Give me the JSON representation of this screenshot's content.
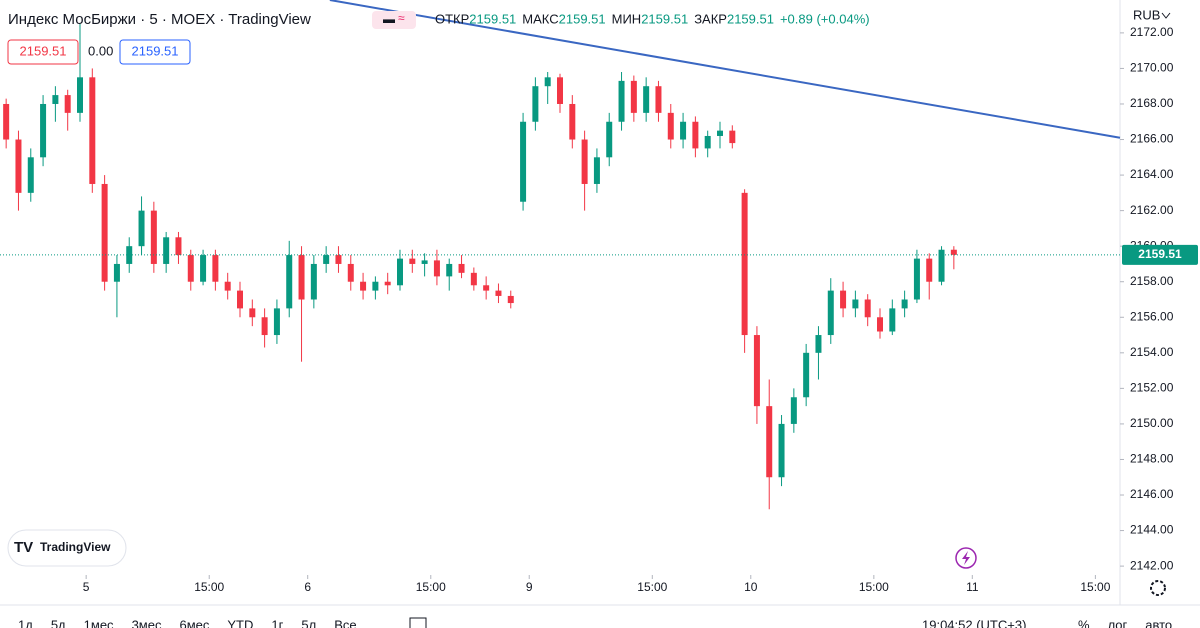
{
  "header": {
    "title": "Индекс МосБиржи · 5 · MOEX · TradingView",
    "ohlc": [
      {
        "label": "ОТКР",
        "value": "2159.51"
      },
      {
        "label": "МАКС",
        "value": "2159.51"
      },
      {
        "label": "МИН",
        "value": "2159.51"
      },
      {
        "label": "ЗАКР",
        "value": "2159.51"
      }
    ],
    "change": "+0.89 (+0.04%)",
    "badges": [
      "2159.51",
      "0.00",
      "2159.51"
    ],
    "logo": "TradingView"
  },
  "chart_data": {
    "type": "candlestick",
    "x": [
      0.5,
      1.5,
      2.5,
      3.5,
      4.5,
      5.5,
      6.5,
      7.5,
      8.5,
      9.5,
      10.5,
      11.5,
      12.5,
      13.5,
      14.5,
      15.5,
      16.5,
      17.5,
      18.5,
      19.5,
      20.5,
      21.5,
      22.5,
      23.5,
      24.5,
      25.5,
      26.5,
      27.5,
      28.5,
      29.5,
      30.5,
      31.5,
      32.5,
      33.5,
      34.5,
      35.5,
      36.5,
      37.5,
      38.5,
      39.5,
      40.5,
      41.5,
      42.5,
      43.5,
      44.5,
      45.5,
      46.5,
      47.5,
      48.5,
      49.5,
      50.5,
      51.5,
      52.5,
      53.5,
      54.5,
      55.5,
      56.5,
      57.5,
      58.5,
      59.5,
      60.5,
      61.5,
      62.5,
      63.5,
      64.5,
      65.5,
      66.5,
      67.5,
      68.5,
      69.5,
      70.5,
      71.5,
      72.5,
      73.5,
      74.5,
      75.5,
      76.5,
      77.5
    ],
    "open": [
      2168,
      2166,
      2163,
      2165,
      2168,
      2168.5,
      2167.5,
      2169.5,
      2163.5,
      2158,
      2159,
      2160,
      2162,
      2159,
      2160.5,
      2159.5,
      2158,
      2159.5,
      2158,
      2157.5,
      2156.5,
      2156,
      2155,
      2156.5,
      2159.5,
      2157,
      2159,
      2159.5,
      2159,
      2158,
      2157.5,
      2158,
      2157.8,
      2159.3,
      2159,
      2159.2,
      2158.3,
      2159,
      2158.5,
      2157.8,
      2157.5,
      2157.2,
      2162.5,
      2167,
      2169,
      2169.5,
      2168,
      2166,
      2163.5,
      2165,
      2167,
      2169.3,
      2167.5,
      2169,
      2167.5,
      2166,
      2167,
      2165.5,
      2166.2,
      2166.5,
      2163,
      2155,
      2151,
      2147,
      2150,
      2151.5,
      2154,
      2155,
      2157.5,
      2156.5,
      2157,
      2156,
      2155.2,
      2156.5,
      2157,
      2159.3,
      2158,
      2159.8
    ],
    "high": [
      2168.3,
      2166.5,
      2165.5,
      2168.5,
      2169,
      2168.8,
      2172.5,
      2170,
      2164,
      2159.5,
      2160.5,
      2162.8,
      2162.5,
      2160.8,
      2160.8,
      2159.8,
      2159.8,
      2159.8,
      2158.5,
      2158,
      2157,
      2156.5,
      2157,
      2160.3,
      2160,
      2159.5,
      2160,
      2160,
      2159.5,
      2158.5,
      2158.3,
      2158.5,
      2159.8,
      2159.8,
      2159.6,
      2159.8,
      2159.3,
      2159.5,
      2158.8,
      2158.3,
      2157.9,
      2157.5,
      2167.5,
      2169.5,
      2169.8,
      2169.7,
      2168.5,
      2166.5,
      2165.5,
      2167.5,
      2169.8,
      2169.6,
      2169.5,
      2169.3,
      2168,
      2167.5,
      2167.3,
      2166.5,
      2167,
      2166.8,
      2163.2,
      2155.5,
      2152.5,
      2150.5,
      2152,
      2154.5,
      2155.5,
      2158.2,
      2158,
      2157.5,
      2157.3,
      2156.5,
      2157,
      2157.5,
      2159.8,
      2159.6,
      2160,
      2160
    ],
    "low": [
      2165.5,
      2162,
      2162.5,
      2164.5,
      2167,
      2166.5,
      2167,
      2163,
      2157.5,
      2156,
      2158.5,
      2159.5,
      2158.5,
      2158.5,
      2159,
      2157.5,
      2157.8,
      2157.5,
      2157,
      2156,
      2155.5,
      2154.3,
      2154.5,
      2156,
      2153.5,
      2156.5,
      2158.5,
      2158.5,
      2157.5,
      2157,
      2157,
      2157.3,
      2157.5,
      2158.5,
      2158.3,
      2157.8,
      2157.5,
      2158.2,
      2157.5,
      2157,
      2156.8,
      2156.5,
      2162,
      2166.5,
      2168,
      2167.5,
      2165.5,
      2162,
      2163,
      2164.5,
      2166.5,
      2167,
      2167,
      2167,
      2165.5,
      2165.5,
      2165,
      2165,
      2165.5,
      2165.5,
      2154,
      2150,
      2145.2,
      2146.5,
      2149.5,
      2151,
      2152.5,
      2154.5,
      2156,
      2156,
      2155.5,
      2154.8,
      2155,
      2156,
      2156.8,
      2157,
      2157.8,
      2158.7
    ],
    "close": [
      2166,
      2163,
      2165,
      2168,
      2168.5,
      2167.5,
      2169.5,
      2163.5,
      2158,
      2159,
      2160,
      2162,
      2159,
      2160.5,
      2159.5,
      2158,
      2159.5,
      2158,
      2157.5,
      2156.5,
      2156,
      2155,
      2156.5,
      2159.5,
      2157,
      2159,
      2159.5,
      2159,
      2158,
      2157.5,
      2158,
      2157.8,
      2159.3,
      2159,
      2159.2,
      2158.3,
      2159,
      2158.5,
      2157.8,
      2157.5,
      2157.2,
      2156.8,
      2167,
      2169,
      2169.5,
      2168,
      2166,
      2163.5,
      2165,
      2167,
      2169.3,
      2167.5,
      2169,
      2167.5,
      2166,
      2167,
      2165.5,
      2166.2,
      2166.5,
      2165.8,
      2155,
      2151,
      2147,
      2150,
      2151.5,
      2154,
      2155,
      2157.5,
      2156.5,
      2157,
      2156,
      2155.2,
      2156.5,
      2157,
      2159.3,
      2158,
      2159.8,
      2159.51
    ],
    "colors": {
      "up": "#089981",
      "down": "#f23645"
    },
    "xlim": [
      0,
      91
    ],
    "xticks": [
      {
        "value": 7,
        "label": "5"
      },
      {
        "value": 17,
        "label": "15:00"
      },
      {
        "value": 25,
        "label": "6"
      },
      {
        "value": 35,
        "label": "15:00"
      },
      {
        "value": 43,
        "label": "9"
      },
      {
        "value": 53,
        "label": "15:00"
      },
      {
        "value": 61,
        "label": "10"
      },
      {
        "value": 71,
        "label": "15:00"
      },
      {
        "value": 79,
        "label": "11"
      },
      {
        "value": 89,
        "label": "15:00"
      }
    ],
    "ylim": [
      2141.5,
      2173.85
    ],
    "yticks": [
      {
        "value": 2142,
        "label": "2142.00"
      },
      {
        "value": 2144,
        "label": "2144.00"
      },
      {
        "value": 2146,
        "label": "2146.00"
      },
      {
        "value": 2148,
        "label": "2148.00"
      },
      {
        "value": 2150,
        "label": "2150.00"
      },
      {
        "value": 2152,
        "label": "2152.00"
      },
      {
        "value": 2154,
        "label": "2154.00"
      },
      {
        "value": 2156,
        "label": "2156.00"
      },
      {
        "value": 2158,
        "label": "2158.00"
      },
      {
        "value": 2160,
        "label": "2160.00"
      },
      {
        "value": 2162,
        "label": "2162.00"
      },
      {
        "value": 2164,
        "label": "2164.00"
      },
      {
        "value": 2166,
        "label": "2166.00"
      },
      {
        "value": 2168,
        "label": "2168.00"
      },
      {
        "value": 2170,
        "label": "2170.00"
      },
      {
        "value": 2172,
        "label": "2172.00"
      }
    ],
    "last_price": 2159.51,
    "trendline": {
      "x": [
        26.8,
        91
      ],
      "y": [
        2173.85,
        2166.1
      ],
      "color": "#3a67c2"
    },
    "currency": "RUB"
  },
  "toolbar": {
    "ranges": [
      "1д",
      "5д",
      "1мес",
      "3мес",
      "6мес",
      "YTD",
      "1г",
      "5л",
      "Все"
    ],
    "time": "19:04:52 (UTC+3)",
    "options": [
      "%",
      "лог",
      "авто"
    ]
  }
}
